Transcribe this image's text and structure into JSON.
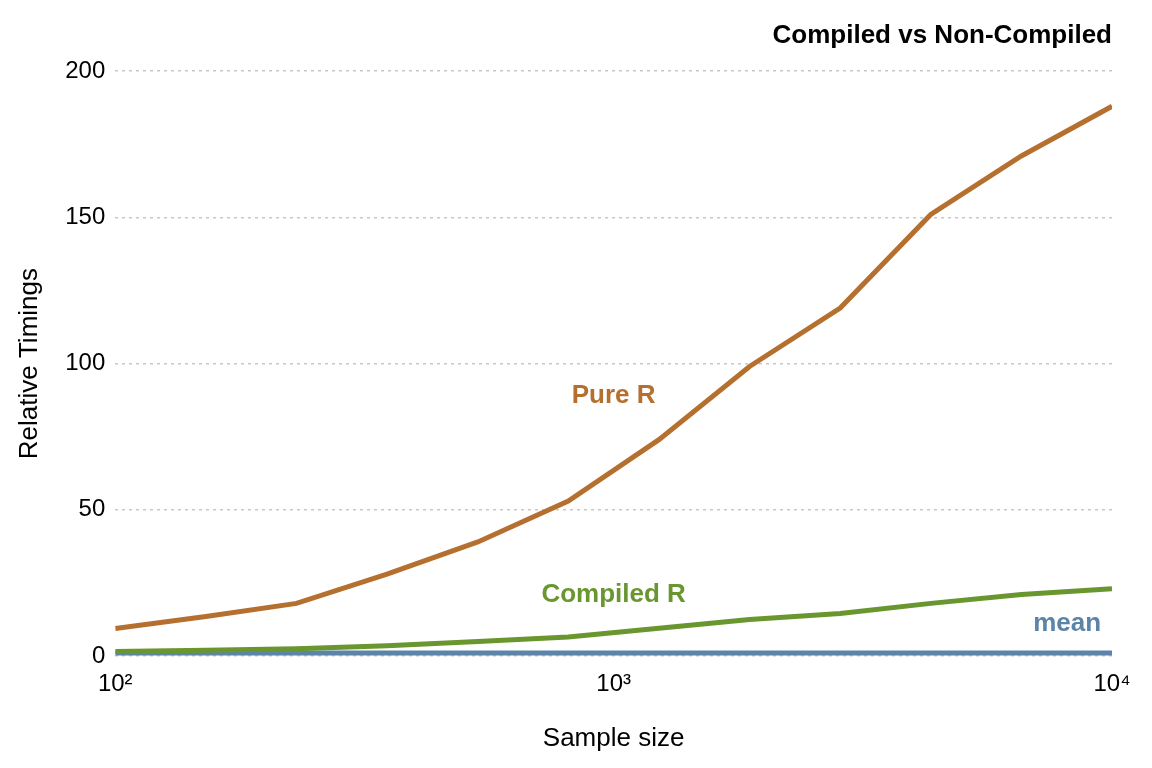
{
  "chart_data": {
    "type": "line",
    "title": "Compiled vs Non-Compiled",
    "x_label": "Sample size",
    "y_label": "Relative Timings",
    "x": [
      100,
      152,
      231,
      351,
      534,
      811,
      1233,
      1874,
      2848,
      4329,
      6579,
      10000
    ],
    "series": [
      {
        "name": "Pure R",
        "color": "#b5702f",
        "values": [
          9.4,
          13.5,
          18,
          28,
          39,
          53,
          74,
          99,
          119,
          151,
          171,
          188
        ]
      },
      {
        "name": "Compiled R",
        "color": "#6a962f",
        "values": [
          1.5,
          2,
          2.5,
          3.5,
          5,
          6.5,
          9.5,
          12.5,
          14.5,
          18,
          21,
          23
        ]
      },
      {
        "name": "mean",
        "color": "#5b84a8",
        "values": [
          1,
          1,
          1,
          1,
          1,
          1,
          1,
          1,
          1,
          1,
          1,
          1
        ]
      }
    ],
    "annotations": [
      {
        "text": "Pure R",
        "x": 1000,
        "y": 89,
        "color": "#b5702f"
      },
      {
        "text": "Compiled R",
        "x": 1000,
        "y": 21,
        "color": "#6a962f"
      },
      {
        "text": "mean",
        "x": 8130,
        "y": 11,
        "color": "#5b84a8"
      }
    ],
    "log": "x",
    "xlim": [
      100,
      10000
    ],
    "xticks": [
      {
        "value": 100,
        "label": "10²"
      },
      {
        "value": 1000,
        "label": "10³"
      },
      {
        "value": 10000,
        "label": "10⁴"
      }
    ],
    "ylim": [
      0,
      200
    ],
    "yticks": [
      0,
      50,
      100,
      150,
      200
    ],
    "grid": true
  }
}
